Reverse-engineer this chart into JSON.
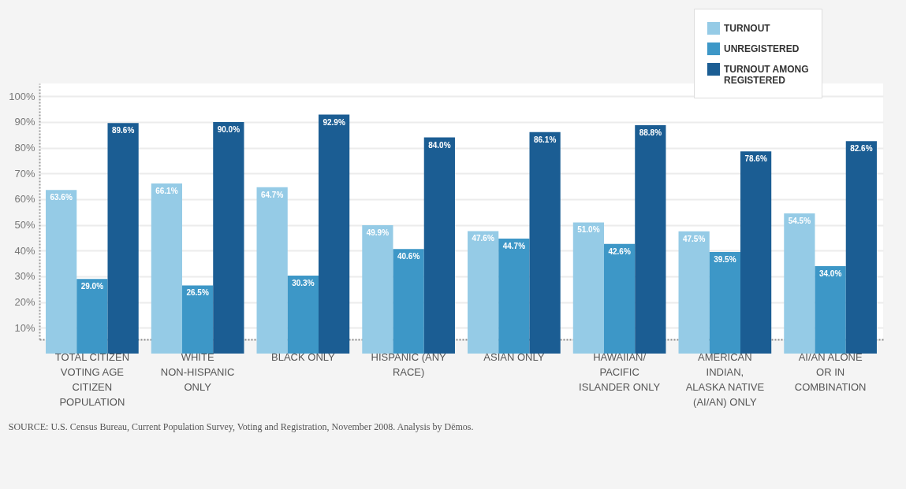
{
  "chart_data": {
    "type": "bar",
    "categories": [
      "TOTAL CITIZEN VOTING AGE CITIZEN POPULATION",
      "WHITE NON-HISPANIC ONLY",
      "BLACK ONLY",
      "HISPANIC (ANY RACE)",
      "ASIAN ONLY",
      "HAWAIIAN/ PACIFIC ISLANDER ONLY",
      "AMERICAN INDIAN, ALASKA NATIVE (AI/AN) ONLY",
      "AI/AN ALONE OR IN COMBINATION"
    ],
    "series": [
      {
        "name": "TURNOUT",
        "color": "#95cbe6",
        "values": [
          63.6,
          66.1,
          64.7,
          49.9,
          47.6,
          51.0,
          47.5,
          54.5
        ],
        "value_labels": [
          "63.6%",
          "66.1%",
          "64.7%",
          "49.9%",
          "47.6%",
          "51.0%",
          "47.5%",
          "54.5%"
        ]
      },
      {
        "name": "UNREGISTERED",
        "color": "#3d97c7",
        "values": [
          29.0,
          26.5,
          30.3,
          40.6,
          44.7,
          42.6,
          39.5,
          34.0
        ],
        "value_labels": [
          "29.0%",
          "26.5%",
          "30.3%",
          "40.6%",
          "44.7%",
          "42.6%",
          "39.5%",
          "34.0%"
        ]
      },
      {
        "name": "TURNOUT AMONG REGISTERED",
        "color": "#1b5d93",
        "values": [
          89.6,
          90.0,
          92.9,
          84.0,
          86.1,
          88.8,
          78.6,
          82.6
        ],
        "value_labels": [
          "89.6%",
          "90.0%",
          "92.9%",
          "84.0%",
          "86.1%",
          "88.8%",
          "78.6%",
          "82.6%"
        ]
      }
    ],
    "ylim": [
      5.5,
      105
    ],
    "yticks": [
      {
        "value": 10,
        "label": "10%"
      },
      {
        "value": 20,
        "label": "20%"
      },
      {
        "value": 30,
        "label": "30%"
      },
      {
        "value": 40,
        "label": "40%"
      },
      {
        "value": 50,
        "label": "50%"
      },
      {
        "value": 60,
        "label": "60%"
      },
      {
        "value": 70,
        "label": "70%"
      },
      {
        "value": 80,
        "label": "80%"
      },
      {
        "value": 90,
        "label": "90%"
      },
      {
        "value": 100,
        "label": "100%"
      }
    ],
    "grid": "y",
    "legend": "top right",
    "annotations": [
      "SOURCE:  U.S. Census Bureau, Current Population Survey, Voting and Registration, November 2008. Analysis by Dēmos."
    ]
  }
}
